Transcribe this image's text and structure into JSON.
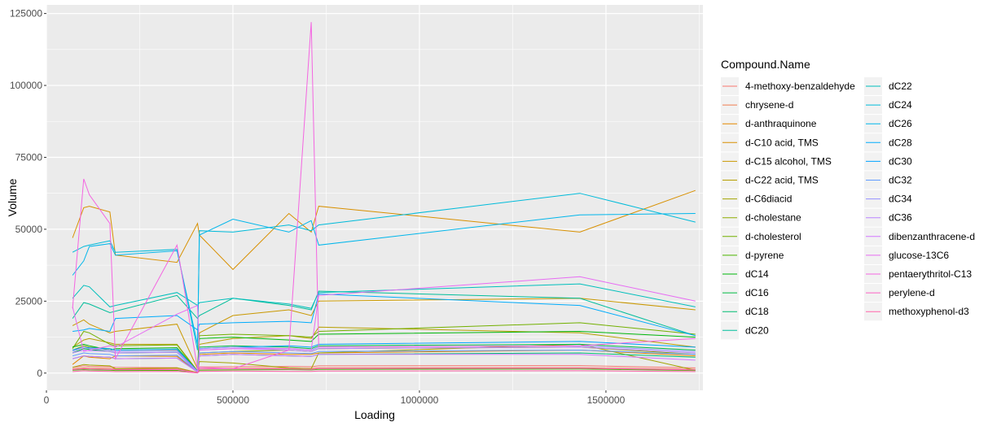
{
  "chart_data": {
    "type": "line",
    "title": "",
    "xlabel": "Loading",
    "ylabel": "Volume",
    "xlim": [
      0,
      1760000
    ],
    "ylim": [
      -6000,
      128000
    ],
    "x_ticks": [
      0,
      500000,
      1000000,
      1500000
    ],
    "x_tick_labels": [
      "0",
      "500000",
      "1000000",
      "1500000"
    ],
    "y_ticks": [
      0,
      25000,
      50000,
      75000,
      100000,
      125000
    ],
    "y_tick_labels": [
      "0",
      "25000",
      "50000",
      "75000",
      "100000",
      "125000"
    ],
    "grid": true,
    "legend_title": "Compound.Name",
    "legend_position": "right",
    "x": [
      70000,
      100000,
      115000,
      170000,
      185000,
      350000,
      405000,
      410000,
      500000,
      650000,
      710000,
      730000,
      1430000,
      1740000
    ],
    "series": [
      {
        "name": "4-methoxy-benzaldehyde",
        "color": "#F8766D",
        "values": [
          2000,
          2500,
          2300,
          2200,
          2000,
          1900,
          200,
          2100,
          2200,
          2300,
          2200,
          2500,
          2600,
          1800
        ]
      },
      {
        "name": "chrysene-d",
        "color": "#F07D4F",
        "values": [
          1500,
          1800,
          1700,
          1600,
          1500,
          1400,
          150,
          1500,
          1600,
          1700,
          1600,
          1800,
          1900,
          1300
        ]
      },
      {
        "name": "d-anthraquinone",
        "color": "#E58700",
        "values": [
          3000,
          6000,
          5500,
          5000,
          6000,
          5800,
          300,
          6500,
          7000,
          6500,
          6500,
          7000,
          8000,
          6000
        ]
      },
      {
        "name": "d-C10 acid, TMS",
        "color": "#D89000",
        "values": [
          47000,
          57500,
          58000,
          56000,
          41000,
          38500,
          52000,
          48000,
          36000,
          55500,
          49000,
          58000,
          49000,
          63500
        ]
      },
      {
        "name": "d-C15 alcohol, TMS",
        "color": "#C99800",
        "values": [
          16500,
          18500,
          17000,
          14000,
          14500,
          17000,
          1500,
          14000,
          20000,
          22000,
          20000,
          25000,
          26000,
          22000
        ]
      },
      {
        "name": "d-C22 acid, TMS",
        "color": "#B79F00",
        "values": [
          9000,
          11500,
          12000,
          10500,
          10000,
          10000,
          800,
          10000,
          12000,
          13000,
          12000,
          16000,
          14000,
          9000
        ]
      },
      {
        "name": "d-C6diacid",
        "color": "#A3A500",
        "values": [
          2000,
          3000,
          2800,
          2500,
          1500,
          1800,
          200,
          4000,
          3500,
          1800,
          1500,
          7000,
          10000,
          1000
        ]
      },
      {
        "name": "d-cholestane",
        "color": "#8EAB00",
        "values": [
          8000,
          9500,
          9000,
          8500,
          8000,
          8200,
          600,
          7000,
          7500,
          8000,
          7500,
          8500,
          9000,
          6500
        ]
      },
      {
        "name": "d-cholesterol",
        "color": "#72B000",
        "values": [
          8500,
          14500,
          14000,
          10000,
          9500,
          9800,
          600,
          13000,
          13500,
          13000,
          12500,
          14500,
          17500,
          13500
        ]
      },
      {
        "name": "d-pyrene",
        "color": "#4CB400",
        "values": [
          1000,
          1200,
          1100,
          1000,
          900,
          950,
          100,
          1000,
          1100,
          1200,
          1100,
          1300,
          1400,
          900
        ]
      },
      {
        "name": "dC14",
        "color": "#00B70B",
        "values": [
          9000,
          10000,
          9500,
          8000,
          8500,
          8800,
          700,
          12000,
          12500,
          11500,
          11000,
          13500,
          14500,
          12500
        ]
      },
      {
        "name": "dC16",
        "color": "#00BA42",
        "values": [
          7000,
          8500,
          8200,
          7500,
          7000,
          7200,
          500,
          9000,
          9500,
          9000,
          8500,
          9500,
          10000,
          8000
        ]
      },
      {
        "name": "dC18",
        "color": "#00BC73",
        "values": [
          5000,
          6000,
          5800,
          5500,
          5000,
          5200,
          400,
          6000,
          6500,
          6000,
          5800,
          6500,
          7000,
          5500
        ]
      },
      {
        "name": "dC20",
        "color": "#00BE9B",
        "values": [
          19000,
          24500,
          24000,
          21000,
          21500,
          27000,
          19000,
          20000,
          26000,
          23500,
          22000,
          28500,
          26000,
          13000
        ]
      },
      {
        "name": "dC22",
        "color": "#00BFBC",
        "values": [
          26000,
          30500,
          30000,
          23000,
          23500,
          28000,
          23500,
          24500,
          26000,
          24000,
          22500,
          28000,
          31000,
          23000
        ]
      },
      {
        "name": "dC24",
        "color": "#00BBDA",
        "values": [
          42000,
          44000,
          44500,
          46000,
          42000,
          43000,
          8000,
          49500,
          49000,
          51500,
          49500,
          51500,
          62500,
          52500
        ]
      },
      {
        "name": "dC26",
        "color": "#00B6EB",
        "values": [
          34000,
          39000,
          44000,
          45000,
          41000,
          42500,
          10000,
          48000,
          53500,
          49000,
          53000,
          44500,
          55000,
          55500
        ]
      },
      {
        "name": "dC28",
        "color": "#00ACFC",
        "values": [
          14500,
          15000,
          15500,
          14500,
          19000,
          20000,
          15000,
          17000,
          17500,
          18000,
          17500,
          27500,
          23500,
          13000
        ]
      },
      {
        "name": "dC30",
        "color": "#00A5FF",
        "values": [
          8000,
          9000,
          8800,
          8500,
          8000,
          8300,
          700,
          8500,
          9000,
          9500,
          9000,
          10000,
          11000,
          9000
        ]
      },
      {
        "name": "dC32",
        "color": "#619CFF",
        "values": [
          6000,
          7000,
          6800,
          6500,
          6000,
          6200,
          500,
          7000,
          7500,
          7000,
          6800,
          7500,
          8000,
          6500
        ]
      },
      {
        "name": "dC34",
        "color": "#9590FF",
        "values": [
          7500,
          9000,
          8500,
          8000,
          7500,
          7800,
          600,
          8500,
          9000,
          8500,
          8000,
          9000,
          9500,
          7500
        ]
      },
      {
        "name": "dC36",
        "color": "#B983FF",
        "values": [
          7000,
          8000,
          7800,
          7500,
          7000,
          7200,
          500,
          8000,
          8500,
          8000,
          7500,
          8500,
          9000,
          7000
        ]
      },
      {
        "name": "dibenzanthracene-d",
        "color": "#D376FF",
        "values": [
          5000,
          6000,
          5800,
          5500,
          5000,
          5200,
          400,
          6000,
          6500,
          6000,
          5800,
          6500,
          6500,
          4500
        ]
      },
      {
        "name": "glucose-13C6",
        "color": "#E76BF3",
        "values": [
          23000,
          7500,
          8000,
          9500,
          9000,
          20500,
          23500,
          8000,
          8500,
          8500,
          8000,
          27000,
          33500,
          25000
        ]
      },
      {
        "name": "pentaerythritol-C13",
        "color": "#F465E1",
        "values": [
          22500,
          67500,
          62000,
          52000,
          5000,
          44500,
          1500,
          2000,
          1500,
          8000,
          122000,
          9000,
          9500,
          12000
        ]
      },
      {
        "name": "perylene-d",
        "color": "#FC61C4",
        "values": [
          1200,
          1500,
          1400,
          1300,
          1200,
          1250,
          100,
          1400,
          1500,
          1400,
          1300,
          1600,
          1700,
          1100
        ]
      },
      {
        "name": "methoxyphenol-d3",
        "color": "#FF65AA",
        "values": [
          500,
          800,
          700,
          600,
          500,
          550,
          50,
          600,
          700,
          600,
          550,
          700,
          800,
          500
        ]
      }
    ]
  }
}
